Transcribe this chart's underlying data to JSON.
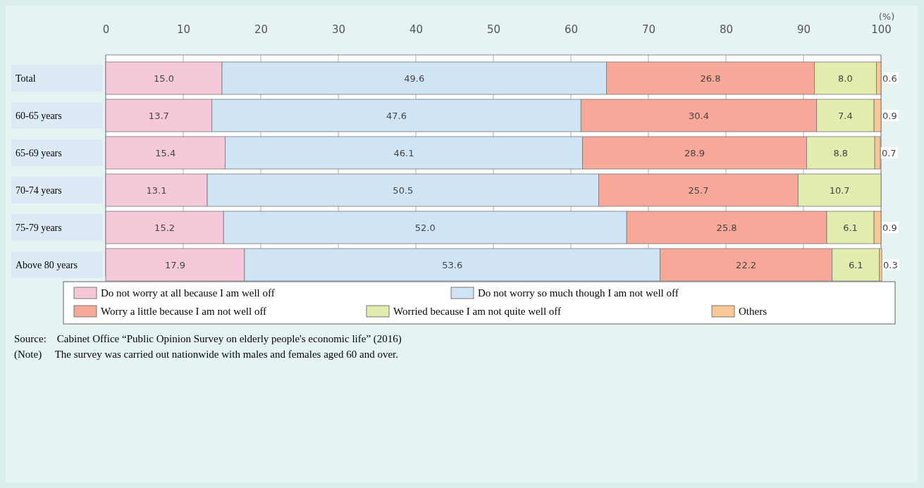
{
  "chart_data": {
    "type": "bar",
    "orientation": "horizontal",
    "stacked": true,
    "xlabel": "(%)",
    "categories": [
      "Total",
      "60-65 years",
      "65-69 years",
      "70-74 years",
      "75-79 years",
      "Above 80 years"
    ],
    "series": [
      {
        "name": "Do not worry at all because I am well off",
        "color": "#f5c8da",
        "values": [
          15.0,
          13.7,
          15.4,
          13.1,
          15.2,
          17.9
        ],
        "value_labels": [
          "15.0",
          "13.7",
          "15.4",
          "13.1",
          "15.2",
          "17.9"
        ]
      },
      {
        "name": "Do not worry so much though I am not well off",
        "color": "#cfe4f4",
        "values": [
          49.6,
          47.6,
          46.1,
          50.5,
          52.0,
          53.6
        ],
        "value_labels": [
          "49.6",
          "47.6",
          "46.1",
          "50.5",
          "52.0",
          "53.6"
        ]
      },
      {
        "name": "Worry a little because I am not well off",
        "color": "#f7a898",
        "values": [
          26.8,
          30.4,
          28.9,
          25.7,
          25.8,
          22.2
        ],
        "value_labels": [
          "26.8",
          "30.4",
          "28.9",
          "25.7",
          "25.8",
          "22.2"
        ]
      },
      {
        "name": "Worried because I am not quite well off",
        "color": "#e2ecae",
        "values": [
          8.0,
          7.4,
          8.8,
          10.7,
          6.1,
          6.1
        ],
        "value_labels": [
          "8.0",
          "7.4",
          "8.8",
          "10.7",
          "6.1",
          "6.1"
        ]
      },
      {
        "name": "Others",
        "color": "#f9c896",
        "values": [
          0.6,
          0.9,
          0.7,
          null,
          0.9,
          0.3
        ],
        "value_labels": [
          "0.6",
          "0.9",
          "0.7",
          null,
          "0.9",
          "0.3"
        ]
      }
    ],
    "xlim": [
      0,
      100
    ],
    "xticks": [
      0,
      10,
      20,
      30,
      40,
      50,
      60,
      70,
      80,
      90,
      100
    ],
    "grid": "x",
    "legend": "bottom",
    "annotations": [
      "Source:    Cabinet Office “Public Opinion Survey on elderly people's economic life” (2016)",
      "(Note)     The survey was carried out nationwide with males and females aged 60 and over."
    ]
  }
}
